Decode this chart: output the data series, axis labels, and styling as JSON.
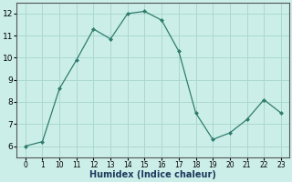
{
  "y": [
    6.0,
    6.2,
    8.6,
    9.9,
    11.3,
    10.85,
    12.0,
    12.1,
    11.7,
    10.3,
    7.5,
    6.3,
    6.6,
    7.2,
    8.1,
    7.5
  ],
  "line_color": "#2e7d6e",
  "marker_color": "#2e7d6e",
  "bg_color": "#cceee8",
  "grid_color": "#aad8d0",
  "xlabel": "Humidex (Indice chaleur)",
  "ylim": [
    5.5,
    12.5
  ],
  "yticks": [
    6,
    7,
    8,
    9,
    10,
    11,
    12
  ],
  "x_tick_labels": [
    "0",
    "1",
    "10",
    "11",
    "12",
    "13",
    "14",
    "15",
    "16",
    "17",
    "18",
    "19",
    "20",
    "21",
    "22",
    "23"
  ]
}
